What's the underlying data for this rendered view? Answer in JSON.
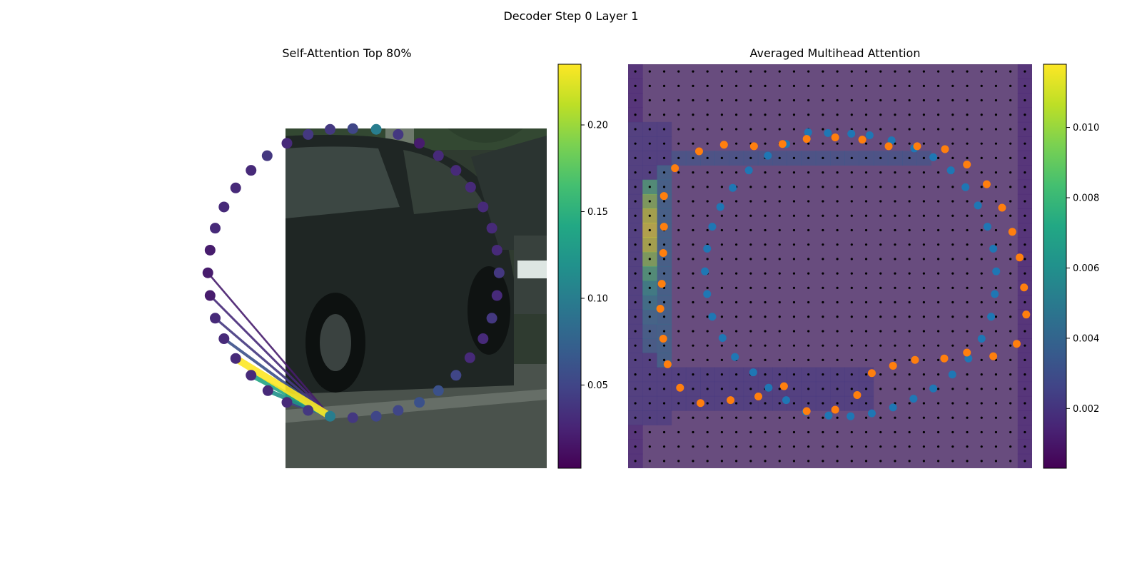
{
  "figure": {
    "title": "Decoder Step 0 Layer 1"
  },
  "panels": {
    "left": {
      "title": "Self-Attention Top 80%"
    },
    "right": {
      "title": "Averaged Multihead Attention"
    }
  },
  "chart_data": [
    {
      "type": "scatter",
      "title": "Self-Attention Top 80%",
      "description": "Polygon vertices over car photo, colored by self-attention weight; lines from query vertex to top-attended vertices",
      "colormap": "viridis",
      "colorbar": {
        "range": [
          0.002,
          0.235
        ],
        "ticks": [
          0.05,
          0.1,
          0.15,
          0.2
        ],
        "tick_labels": [
          "0.05",
          "0.10",
          "0.15",
          "0.20"
        ]
      },
      "query_vertex": 0,
      "vertices": [
        {
          "x": 452,
          "y": 569,
          "v": 0.1
        },
        {
          "x": 483,
          "y": 571,
          "v": 0.04
        },
        {
          "x": 515,
          "y": 569,
          "v": 0.05
        },
        {
          "x": 545,
          "y": 561,
          "v": 0.05
        },
        {
          "x": 574,
          "y": 550,
          "v": 0.06
        },
        {
          "x": 600,
          "y": 534,
          "v": 0.06
        },
        {
          "x": 624,
          "y": 513,
          "v": 0.05
        },
        {
          "x": 643,
          "y": 489,
          "v": 0.03
        },
        {
          "x": 661,
          "y": 463,
          "v": 0.03
        },
        {
          "x": 673,
          "y": 435,
          "v": 0.04
        },
        {
          "x": 680,
          "y": 404,
          "v": 0.03
        },
        {
          "x": 683,
          "y": 373,
          "v": 0.04
        },
        {
          "x": 680,
          "y": 342,
          "v": 0.03
        },
        {
          "x": 673,
          "y": 312,
          "v": 0.03
        },
        {
          "x": 661,
          "y": 283,
          "v": 0.03
        },
        {
          "x": 644,
          "y": 256,
          "v": 0.03
        },
        {
          "x": 624,
          "y": 233,
          "v": 0.03
        },
        {
          "x": 600,
          "y": 213,
          "v": 0.03
        },
        {
          "x": 574,
          "y": 196,
          "v": 0.02
        },
        {
          "x": 545,
          "y": 184,
          "v": 0.04
        },
        {
          "x": 515,
          "y": 177,
          "v": 0.1
        },
        {
          "x": 483,
          "y": 176,
          "v": 0.05
        },
        {
          "x": 452,
          "y": 177,
          "v": 0.04
        },
        {
          "x": 422,
          "y": 184,
          "v": 0.04
        },
        {
          "x": 393,
          "y": 196,
          "v": 0.03
        },
        {
          "x": 366,
          "y": 213,
          "v": 0.04
        },
        {
          "x": 344,
          "y": 233,
          "v": 0.03
        },
        {
          "x": 323,
          "y": 257,
          "v": 0.03
        },
        {
          "x": 307,
          "y": 283,
          "v": 0.03
        },
        {
          "x": 295,
          "y": 312,
          "v": 0.03
        },
        {
          "x": 288,
          "y": 342,
          "v": 0.02
        },
        {
          "x": 285,
          "y": 373,
          "v": 0.02
        },
        {
          "x": 288,
          "y": 404,
          "v": 0.02
        },
        {
          "x": 295,
          "y": 435,
          "v": 0.03
        },
        {
          "x": 307,
          "y": 463,
          "v": 0.03
        },
        {
          "x": 323,
          "y": 490,
          "v": 0.03
        },
        {
          "x": 344,
          "y": 513,
          "v": 0.03
        },
        {
          "x": 367,
          "y": 534,
          "v": 0.03
        },
        {
          "x": 393,
          "y": 550,
          "v": 0.03
        },
        {
          "x": 422,
          "y": 561,
          "v": 0.04
        }
      ],
      "attention_lines": [
        {
          "to": 35,
          "v": 0.235
        },
        {
          "to": 36,
          "v": 0.14
        },
        {
          "to": 37,
          "v": 0.12
        },
        {
          "to": 34,
          "v": 0.06
        },
        {
          "to": 38,
          "v": 0.05
        },
        {
          "to": 33,
          "v": 0.04
        },
        {
          "to": 32,
          "v": 0.03
        },
        {
          "to": 31,
          "v": 0.02
        }
      ]
    },
    {
      "type": "heatmap",
      "title": "Averaged Multihead Attention",
      "description": "Averaged attention heatmap (28x28 grid) over image with ground-truth (blue) and predicted (orange) polygon points",
      "colormap": "viridis",
      "colorbar": {
        "range": [
          0.0003,
          0.0118
        ],
        "ticks": [
          0.002,
          0.004,
          0.006,
          0.008,
          0.01
        ],
        "tick_labels": [
          "0.002",
          "0.004",
          "0.006",
          "0.008",
          "0.010"
        ]
      },
      "series": [
        {
          "name": "",
          "color": "#1f77b4",
          "points": [
            [
              1104,
              181
            ],
            [
              1131,
              182
            ],
            [
              1163,
              183
            ],
            [
              1188,
              185
            ],
            [
              1218,
              192
            ],
            [
              1249,
              203
            ],
            [
              1275,
              215
            ],
            [
              1299,
              233
            ],
            [
              1319,
              256
            ],
            [
              1336,
              281
            ],
            [
              1349,
              310
            ],
            [
              1357,
              340
            ],
            [
              1361,
              371
            ],
            [
              1359,
              402
            ],
            [
              1354,
              433
            ],
            [
              1341,
              463
            ],
            [
              1323,
              490
            ],
            [
              1301,
              512
            ],
            [
              1275,
              531
            ],
            [
              1248,
              545
            ],
            [
              1220,
              557
            ],
            [
              1191,
              565
            ],
            [
              1162,
              569
            ],
            [
              1132,
              568
            ],
            [
              1101,
              563
            ],
            [
              1074,
              547
            ],
            [
              1050,
              530
            ],
            [
              1029,
              509
            ],
            [
              1004,
              488
            ],
            [
              987,
              462
            ],
            [
              973,
              433
            ],
            [
              966,
              402
            ],
            [
              963,
              371
            ],
            [
              966,
              340
            ],
            [
              973,
              310
            ],
            [
              984,
              283
            ],
            [
              1001,
              257
            ],
            [
              1023,
              233
            ],
            [
              1049,
              213
            ],
            [
              1074,
              197
            ]
          ]
        },
        {
          "name": "",
          "color": "#ff7f0e",
          "points": [
            [
              955,
              207
            ],
            [
              989,
              198
            ],
            [
              1030,
              200
            ],
            [
              1069,
              197
            ],
            [
              1102,
              190
            ],
            [
              1141,
              188
            ],
            [
              1178,
              191
            ],
            [
              1214,
              200
            ],
            [
              1253,
              200
            ],
            [
              1291,
              204
            ],
            [
              1321,
              225
            ],
            [
              1348,
              252
            ],
            [
              1369,
              284
            ],
            [
              1383,
              317
            ],
            [
              1393,
              352
            ],
            [
              1399,
              393
            ],
            [
              1402,
              430
            ],
            [
              1389,
              470
            ],
            [
              1357,
              487
            ],
            [
              1321,
              482
            ],
            [
              1290,
              490
            ],
            [
              1250,
              492
            ],
            [
              1220,
              500
            ],
            [
              1191,
              510
            ],
            [
              1171,
              540
            ],
            [
              1141,
              560
            ],
            [
              1102,
              562
            ],
            [
              1071,
              528
            ],
            [
              1036,
              542
            ],
            [
              998,
              547
            ],
            [
              957,
              551
            ],
            [
              929,
              530
            ],
            [
              912,
              498
            ],
            [
              906,
              463
            ],
            [
              902,
              422
            ],
            [
              904,
              388
            ],
            [
              906,
              346
            ],
            [
              907,
              310
            ],
            [
              907,
              268
            ],
            [
              922,
              230
            ]
          ]
        }
      ]
    }
  ]
}
